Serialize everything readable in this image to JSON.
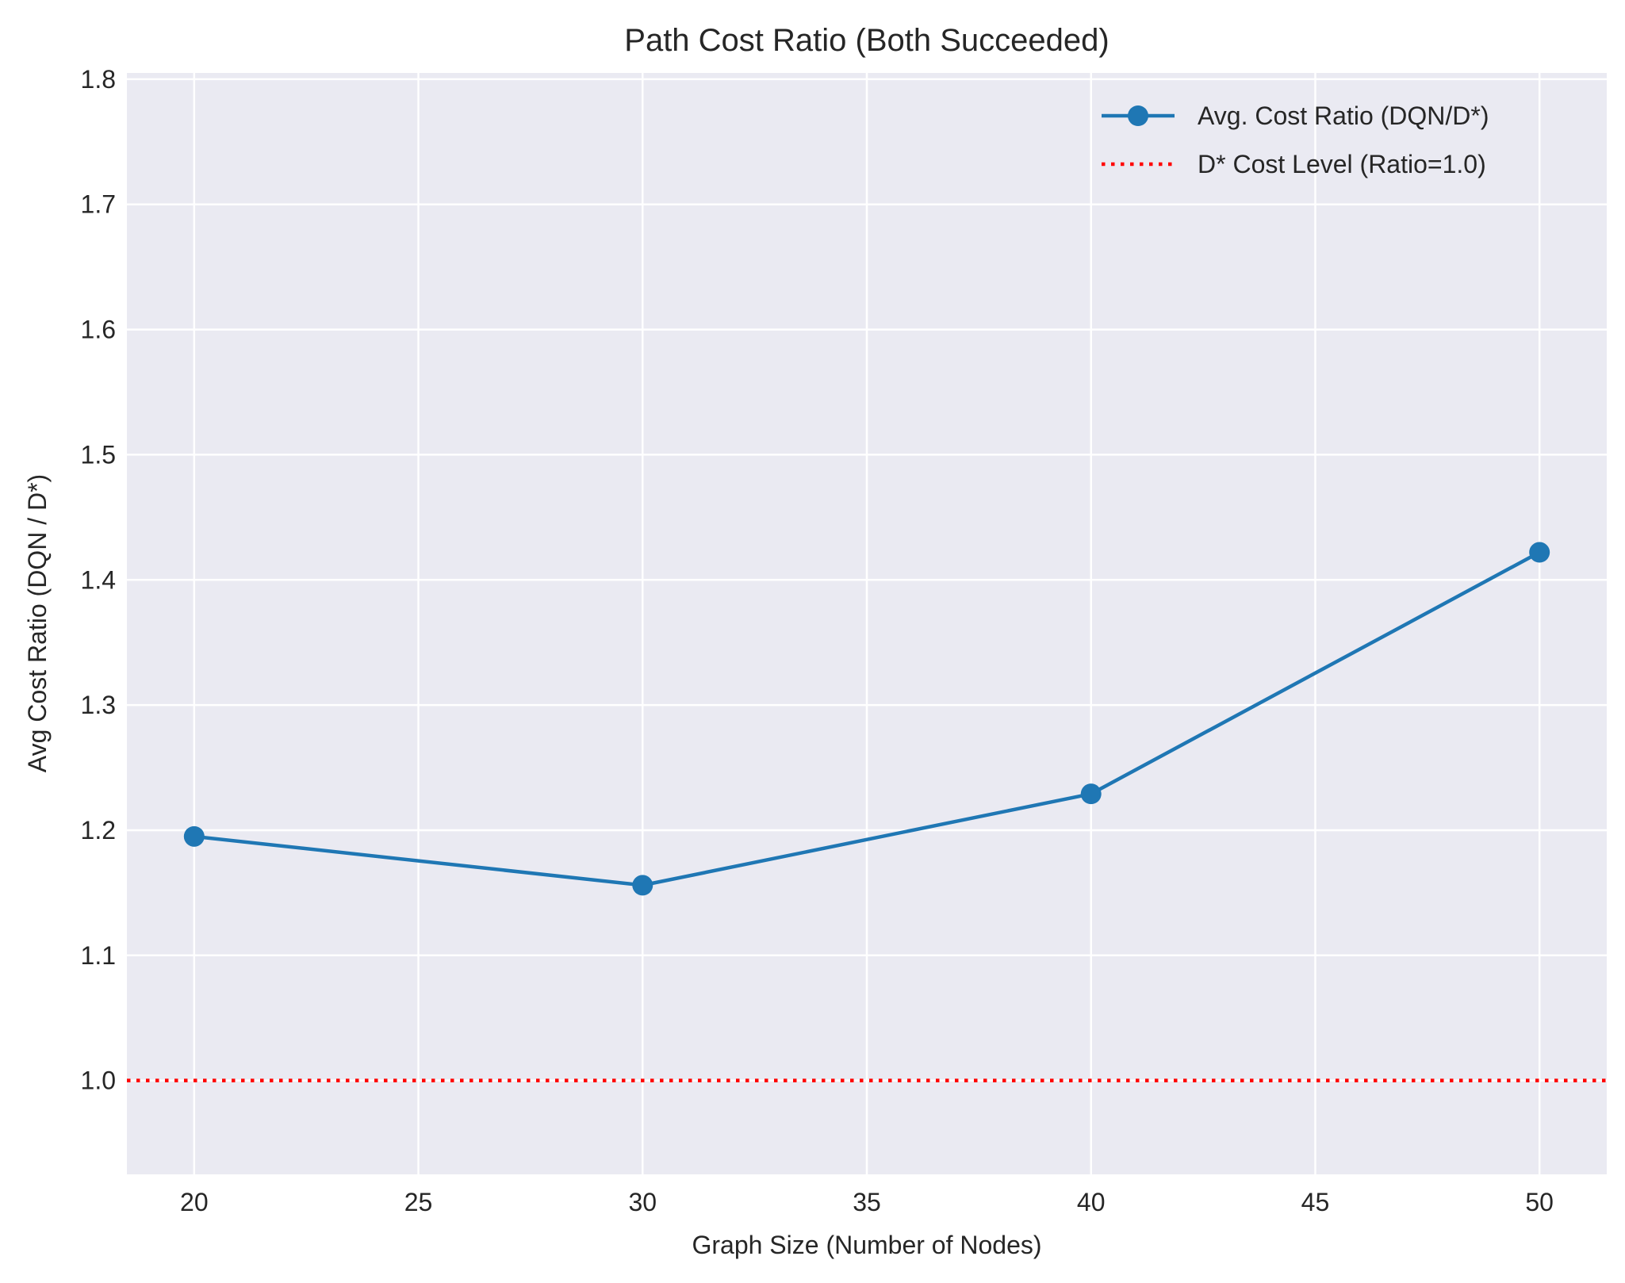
{
  "chart_data": {
    "type": "line",
    "title": "Path Cost Ratio (Both Succeeded)",
    "xlabel": "Graph Size (Number of Nodes)",
    "ylabel": "Avg Cost Ratio (DQN / D*)",
    "xlim": [
      18.5,
      51.5
    ],
    "ylim": [
      0.925,
      1.805
    ],
    "xticks": [
      20,
      25,
      30,
      35,
      40,
      45,
      50
    ],
    "yticks": [
      1.0,
      1.1,
      1.2,
      1.3,
      1.4,
      1.5,
      1.6,
      1.7,
      1.8
    ],
    "ytick_labels": [
      "1.0",
      "1.1",
      "1.2",
      "1.3",
      "1.4",
      "1.5",
      "1.6",
      "1.7",
      "1.8"
    ],
    "grid": true,
    "legend_position": "top-right",
    "series": [
      {
        "name": "Avg. Cost Ratio (DQN/D*)",
        "color": "#1f77b4",
        "marker": "circle",
        "x": [
          20,
          30,
          40,
          50
        ],
        "y": [
          1.195,
          1.156,
          1.229,
          1.422
        ]
      }
    ],
    "reference_lines": [
      {
        "name": "D* Cost Level (Ratio=1.0)",
        "y": 1.0,
        "color": "#ff0000",
        "style": "dotted"
      }
    ],
    "background_color": "#eaeaf2"
  }
}
